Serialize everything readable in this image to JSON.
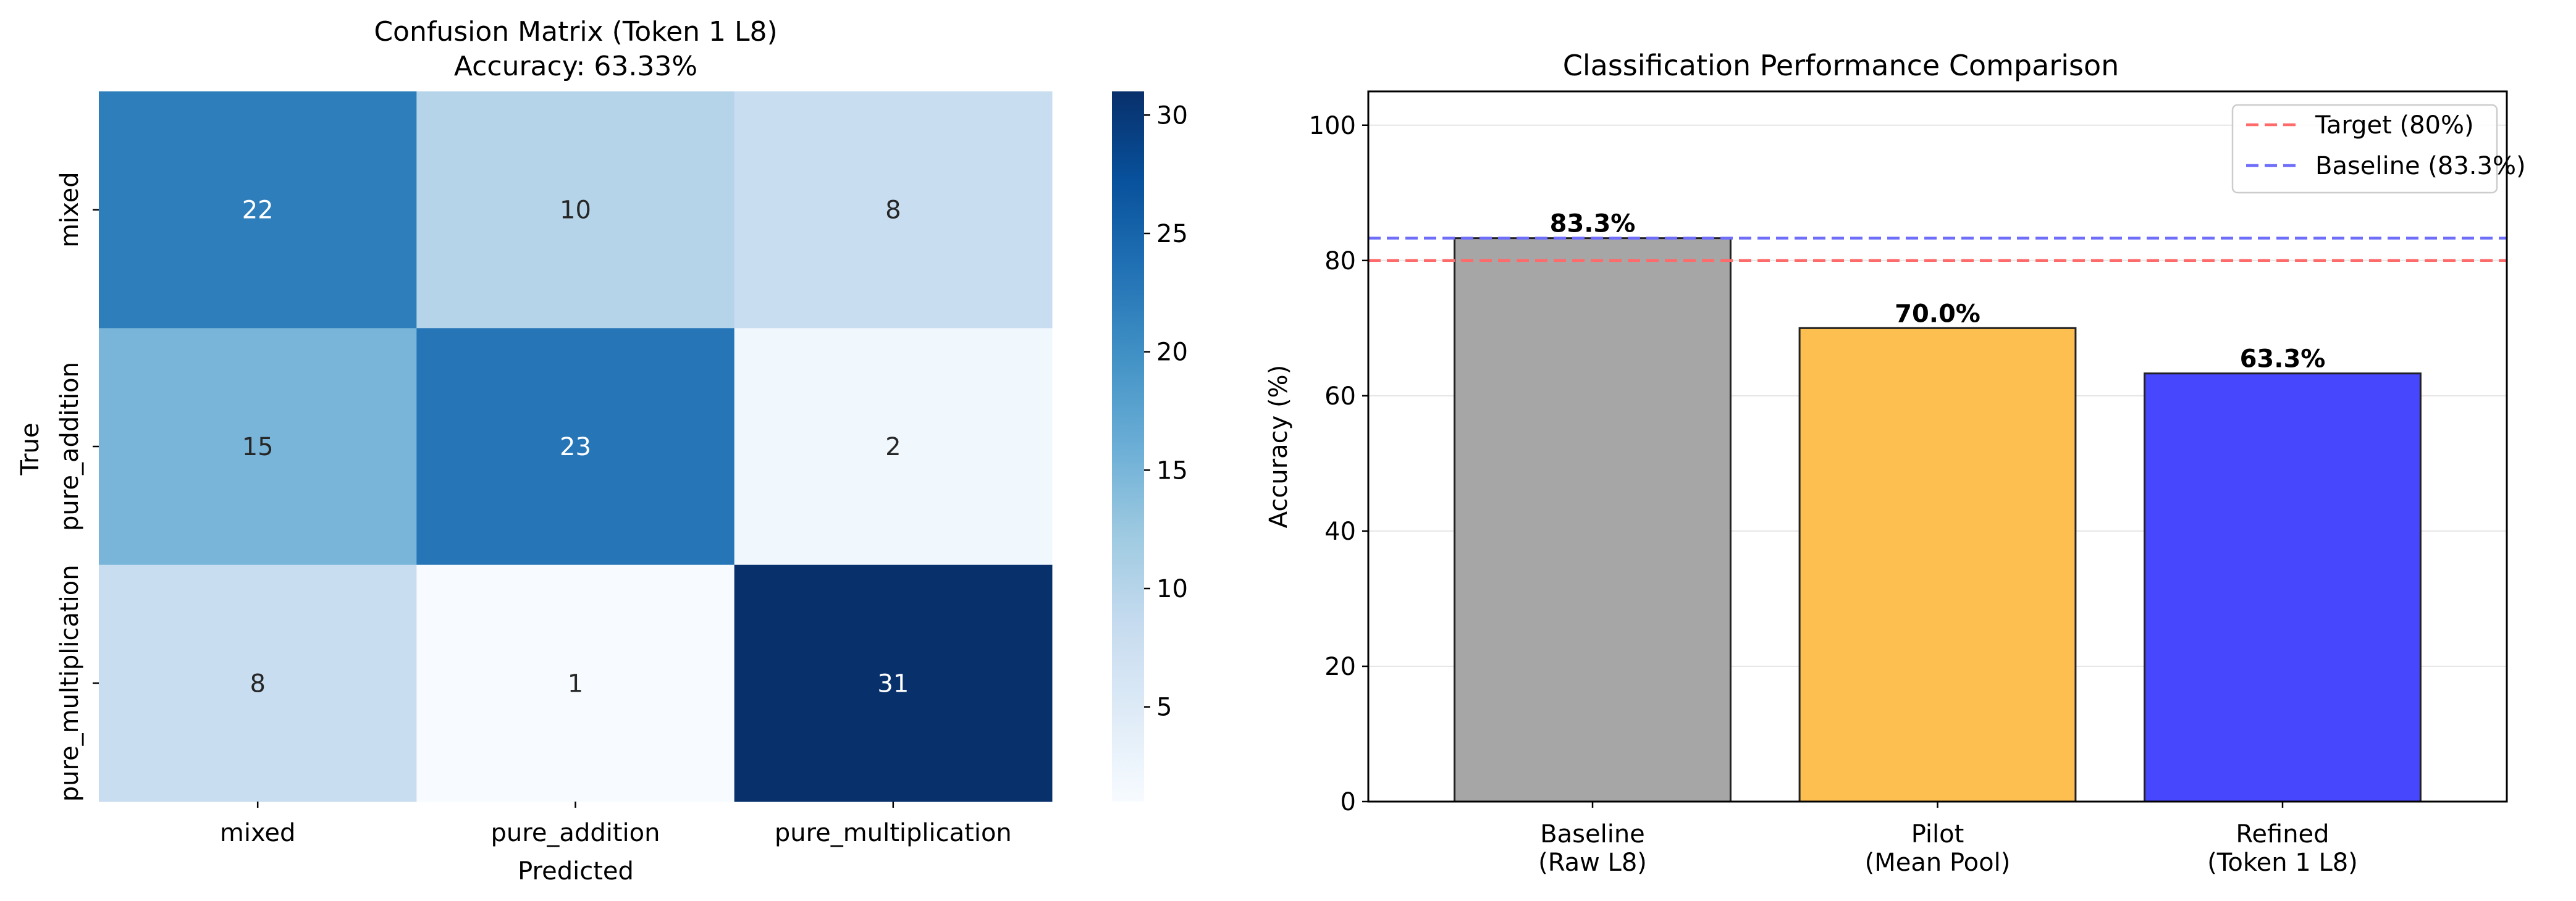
{
  "chart_data": [
    {
      "type": "heatmap",
      "title": "Confusion Matrix (Token 1 L8)",
      "subtitle": "Accuracy: 63.33%",
      "xlabel": "Predicted",
      "ylabel": "True",
      "x_categories": [
        "mixed",
        "pure_addition",
        "pure_multiplication"
      ],
      "y_categories": [
        "mixed",
        "pure_addition",
        "pure_multiplication"
      ],
      "values": [
        [
          22,
          10,
          8
        ],
        [
          15,
          23,
          2
        ],
        [
          8,
          1,
          31
        ]
      ],
      "colormap": "Blues",
      "colorbar": {
        "range": [
          1,
          31
        ],
        "ticks": [
          5,
          10,
          15,
          20,
          25,
          30
        ]
      }
    },
    {
      "type": "bar",
      "title": "Classification Performance Comparison",
      "xlabel": "",
      "ylabel": "Accuracy (%)",
      "ylim": [
        0,
        105
      ],
      "yticks": [
        0,
        20,
        40,
        60,
        80,
        100
      ],
      "grid": true,
      "categories": [
        [
          "Baseline",
          "(Raw L8)"
        ],
        [
          "Pilot",
          "(Mean Pool)"
        ],
        [
          "Refined",
          "(Token 1 L8)"
        ]
      ],
      "values": [
        83.3,
        70.0,
        63.3
      ],
      "bar_labels": [
        "83.3%",
        "70.0%",
        "63.3%"
      ],
      "bar_colors": [
        "#a6a6a6",
        "#fdbf4f",
        "#4747fd"
      ],
      "reference_lines": [
        {
          "name": "Target (80%)",
          "value": 80,
          "color": "#ff6b6b"
        },
        {
          "name": "Baseline (83.3%)",
          "value": 83.3,
          "color": "#6e6efa"
        }
      ],
      "legend_position": "upper-right"
    }
  ]
}
